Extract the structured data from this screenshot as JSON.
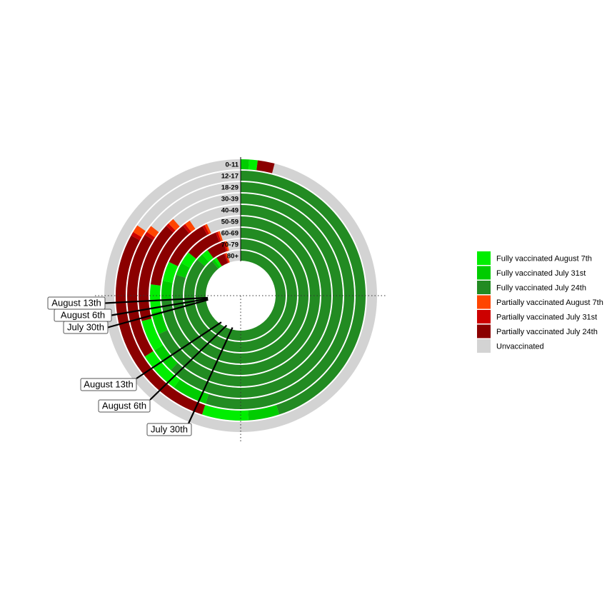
{
  "legend": [
    {
      "label": "Fully vaccinated August 7th",
      "color": "#00ee00"
    },
    {
      "label": "Fully vaccinated July 31st",
      "color": "#00cc00"
    },
    {
      "label": "Fully vaccinated July 24th",
      "color": "#228b22"
    },
    {
      "label": "Partially vaccinated August 7th",
      "color": "#ff4500"
    },
    {
      "label": "Partially vaccinated July 31st",
      "color": "#cd0000"
    },
    {
      "label": "Partially vaccinated July 24th",
      "color": "#8b0000"
    },
    {
      "label": "Unvaccinated",
      "color": "#d3d3d3"
    }
  ],
  "chart_data": {
    "type": "radial-stacked-bar",
    "x_unit": "percent of age group (clockwise from top)",
    "xlim": [
      0,
      100
    ],
    "age_groups": [
      "80+",
      "70-79",
      "60-69",
      "50-59",
      "40-49",
      "30-39",
      "18-29",
      "12-17",
      "0-11"
    ],
    "series": [
      {
        "name": "Fully vaccinated July 24th",
        "values": [
          89,
          86,
          80,
          74,
          68,
          62,
          55,
          45,
          0
        ]
      },
      {
        "name": "Fully vaccinated July 31st",
        "values": [
          1,
          2,
          3,
          4,
          4,
          4,
          5,
          4,
          1
        ]
      },
      {
        "name": "Fully vaccinated August 7th",
        "values": [
          1,
          2,
          3,
          4,
          5,
          5,
          6,
          6,
          1
        ]
      },
      {
        "name": "Partially vaccinated July 24th",
        "values": [
          3,
          5,
          8,
          10,
          12,
          16,
          18,
          28,
          2
        ]
      },
      {
        "name": "Partially vaccinated July 31st",
        "values": [
          0.5,
          0.5,
          0.5,
          0.5,
          0.5,
          0.5,
          0.5,
          0.5,
          0
        ]
      },
      {
        "name": "Partially vaccinated August 7th",
        "values": [
          0.5,
          0.5,
          0.5,
          0.5,
          1,
          1,
          1,
          1,
          0
        ]
      }
    ],
    "callouts": [
      {
        "label": "August 13th",
        "group": "partially",
        "value": 74
      },
      {
        "label": "August 6th",
        "group": "partially",
        "value": 73.5
      },
      {
        "label": "July 30th",
        "group": "partially",
        "value": 73
      },
      {
        "label": "August 13th",
        "group": "fully",
        "value": 60
      },
      {
        "label": "August 6th",
        "group": "fully",
        "value": 57
      },
      {
        "label": "July 30th",
        "group": "fully",
        "value": 54
      }
    ]
  }
}
